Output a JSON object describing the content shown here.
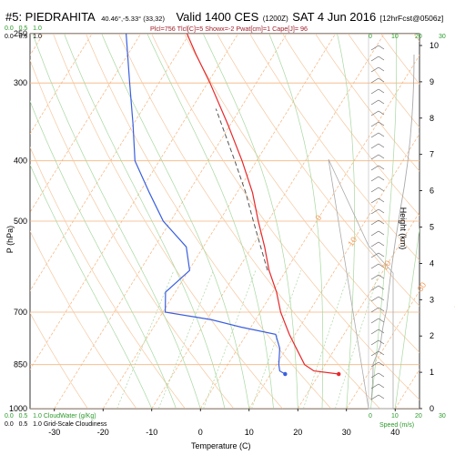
{
  "header": {
    "station": "#5: PIEDRAHITA",
    "coords": "40.46°,-5.33° (33,32)",
    "valid": "Valid 1400 CES",
    "zulu": "(1200Z)",
    "date": "SAT 4 Jun 2016",
    "fcst": "[12hrFcst@0506z]",
    "parcel_info": "Plcl=756 Tlcl[C]=5 Showx=-2 Pwat[cm]=1 Cape[J]= 96"
  },
  "top_scale": [
    "0.0",
    "0.5",
    "1.0"
  ],
  "speed_scale_top": [
    "0",
    "10",
    "20",
    "30"
  ],
  "bottom_left": {
    "cloudwater_label": "CloudWater (g/Kg)",
    "cloudiness_label": "Grid-Scale Cloudiness",
    "row1": [
      "0.0",
      "0.5",
      "1.0"
    ],
    "row2": [
      "0.0",
      "0.5",
      "1.0"
    ]
  },
  "speed_axis": {
    "label": "Speed (m/s)",
    "ticks": [
      "0",
      "10",
      "20",
      "30"
    ]
  },
  "colors": {
    "temperature": "#e8272a",
    "dewpoint": "#3a5fe0",
    "parcel": "#555555",
    "isotherm": "#f5b27a",
    "dry_adiabat": "#f5c8a0",
    "moist_adiabat": "#a8d8a0",
    "mixing_ratio": "#a8d8a0",
    "wind": "#666666",
    "speed_profile": "#aaaaaa",
    "green_text": "#2a9a2a",
    "title_red": "#a0202a"
  },
  "chart_data": {
    "type": "line",
    "title": "#5: PIEDRAHITA",
    "xlabel": "Temperature (C)",
    "ylabel": "P (hPa)",
    "y2label": "Height (km)",
    "x_ticks": [
      "-30",
      "-20",
      "-10",
      "0",
      "10",
      "20",
      "30",
      "40"
    ],
    "p_ticks": [
      "250",
      "300",
      "400",
      "500",
      "700",
      "850",
      "1000"
    ],
    "height_ticks": [
      "0",
      "1",
      "2",
      "3",
      "4",
      "5",
      "6",
      "7",
      "8",
      "9",
      "10"
    ],
    "xlim": [
      -35,
      45
    ],
    "plim": [
      1000,
      250
    ],
    "skew": true,
    "isotherm_labels": [
      "0",
      "10",
      "20",
      "30",
      "40"
    ],
    "series": [
      {
        "name": "Temperature",
        "points": [
          {
            "p": 880,
            "t": 24.0
          },
          {
            "p": 870,
            "t": 18.5
          },
          {
            "p": 850,
            "t": 15.8
          },
          {
            "p": 800,
            "t": 12.0
          },
          {
            "p": 760,
            "t": 8.8
          },
          {
            "p": 700,
            "t": 4.2
          },
          {
            "p": 650,
            "t": 0.8
          },
          {
            "p": 600,
            "t": -3.5
          },
          {
            "p": 550,
            "t": -7.4
          },
          {
            "p": 500,
            "t": -12.0
          },
          {
            "p": 450,
            "t": -16.8
          },
          {
            "p": 400,
            "t": -23.0
          },
          {
            "p": 350,
            "t": -30.5
          },
          {
            "p": 300,
            "t": -39.5
          },
          {
            "p": 270,
            "t": -46.0
          },
          {
            "p": 250,
            "t": -50.5
          }
        ]
      },
      {
        "name": "Dewpoint",
        "points": [
          {
            "p": 880,
            "t": 13.0
          },
          {
            "p": 870,
            "t": 11.5
          },
          {
            "p": 850,
            "t": 10.5
          },
          {
            "p": 800,
            "t": 8.6
          },
          {
            "p": 760,
            "t": 6.0
          },
          {
            "p": 740,
            "t": -2.0
          },
          {
            "p": 720,
            "t": -9.0
          },
          {
            "p": 700,
            "t": -19.5
          },
          {
            "p": 650,
            "t": -22.0
          },
          {
            "p": 600,
            "t": -19.8
          },
          {
            "p": 550,
            "t": -23.5
          },
          {
            "p": 500,
            "t": -31.5
          },
          {
            "p": 450,
            "t": -38.0
          },
          {
            "p": 400,
            "t": -45.0
          },
          {
            "p": 350,
            "t": -50.0
          },
          {
            "p": 300,
            "t": -56.0
          },
          {
            "p": 250,
            "t": -63.0
          }
        ]
      },
      {
        "name": "Parcel",
        "points": [
          {
            "p": 600,
            "t": -3.8
          },
          {
            "p": 550,
            "t": -8.2
          },
          {
            "p": 500,
            "t": -13.0
          },
          {
            "p": 450,
            "t": -18.2
          },
          {
            "p": 400,
            "t": -24.5
          },
          {
            "p": 350,
            "t": -31.8
          },
          {
            "p": 330,
            "t": -35.0
          }
        ]
      }
    ],
    "surface_markers": [
      {
        "p": 880,
        "t": 24.0
      },
      {
        "p": 880,
        "t": 13.0
      }
    ]
  }
}
